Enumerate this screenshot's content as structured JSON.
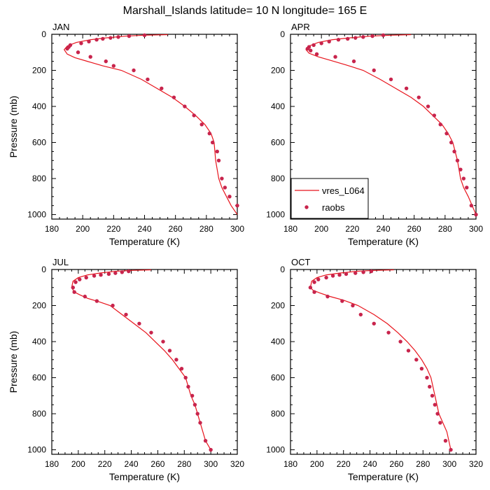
{
  "page_title": "Marshall_Islands  latitude= 10 N longitude= 165 E",
  "colors": {
    "model_line": "#e8141c",
    "obs_marker": "#c8244c",
    "axis": "#000000"
  },
  "chart_data": [
    {
      "type": "line",
      "panel_label": "JAN",
      "xlabel": "Temperature (K)",
      "ylabel": "Pressure (mb)",
      "xlim": [
        180,
        300
      ],
      "ylim": [
        0,
        1025
      ],
      "y_inverted": true,
      "x_ticks": [
        180,
        200,
        220,
        240,
        260,
        280,
        300
      ],
      "y_ticks": [
        0,
        200,
        400,
        600,
        800,
        1000
      ],
      "legend": null,
      "series": [
        {
          "kind": "line",
          "x": [
            255,
            240,
            228,
            215,
            205,
            196,
            190,
            188,
            190,
            195,
            203,
            213,
            225,
            238,
            248,
            258,
            266,
            273,
            279,
            283,
            285,
            286,
            288,
            290,
            293,
            296,
            300
          ],
          "y": [
            2,
            5,
            10,
            20,
            30,
            45,
            65,
            85,
            110,
            130,
            150,
            175,
            200,
            250,
            300,
            350,
            400,
            450,
            500,
            550,
            600,
            700,
            800,
            850,
            900,
            950,
            1000
          ]
        },
        {
          "kind": "points",
          "x": [
            240,
            230,
            223,
            218,
            213,
            209,
            204,
            199,
            192,
            191,
            190,
            197,
            205,
            215,
            220,
            233,
            242,
            251,
            259,
            266,
            272,
            277,
            282,
            284,
            287,
            288,
            290,
            292,
            295,
            300
          ],
          "y": [
            5,
            10,
            15,
            20,
            25,
            30,
            40,
            50,
            60,
            70,
            80,
            100,
            125,
            150,
            175,
            200,
            250,
            300,
            350,
            400,
            450,
            500,
            550,
            600,
            650,
            700,
            800,
            850,
            900,
            950
          ]
        }
      ]
    },
    {
      "type": "line",
      "panel_label": "APR",
      "xlabel": "Temperature (K)",
      "ylabel": "",
      "xlim": [
        180,
        300
      ],
      "ylim": [
        0,
        1025
      ],
      "y_inverted": true,
      "x_ticks": [
        180,
        200,
        220,
        240,
        260,
        280,
        300
      ],
      "y_ticks": [
        0,
        200,
        400,
        600,
        800,
        1000
      ],
      "legend": {
        "placement": "bottom-left",
        "line_label": "vres_L064",
        "points_label": "raobs"
      },
      "series": [
        {
          "kind": "line",
          "x": [
            258,
            245,
            232,
            218,
            207,
            198,
            192,
            190,
            192,
            198,
            206,
            216,
            227,
            238,
            248,
            258,
            266,
            272,
            278,
            282,
            285,
            288,
            290,
            292,
            295,
            300
          ],
          "y": [
            2,
            5,
            10,
            20,
            30,
            45,
            65,
            85,
            105,
            125,
            145,
            170,
            200,
            250,
            300,
            350,
            400,
            450,
            500,
            550,
            600,
            700,
            800,
            850,
            900,
            1000
          ]
        },
        {
          "kind": "points",
          "x": [
            240,
            233,
            227,
            222,
            217,
            211,
            205,
            200,
            195,
            192,
            191,
            193,
            197,
            209,
            221,
            234,
            245,
            255,
            263,
            269,
            273,
            277,
            281,
            284,
            286,
            288,
            290,
            292,
            294,
            297,
            300
          ],
          "y": [
            5,
            10,
            15,
            20,
            25,
            30,
            40,
            50,
            60,
            70,
            80,
            90,
            110,
            125,
            150,
            200,
            250,
            300,
            350,
            400,
            450,
            500,
            550,
            600,
            650,
            700,
            750,
            800,
            850,
            950,
            1000
          ]
        }
      ]
    },
    {
      "type": "line",
      "panel_label": "JUL",
      "xlabel": "Temperature (K)",
      "ylabel": "Pressure (mb)",
      "xlim": [
        180,
        320
      ],
      "ylim": [
        0,
        1025
      ],
      "y_inverted": true,
      "x_ticks": [
        180,
        200,
        220,
        240,
        260,
        280,
        300,
        320
      ],
      "y_ticks": [
        0,
        200,
        400,
        600,
        800,
        1000
      ],
      "legend": null,
      "series": [
        {
          "kind": "line",
          "x": [
            255,
            240,
            228,
            216,
            207,
            200,
            196,
            195,
            197,
            201,
            207,
            216,
            224,
            233,
            242,
            251,
            258,
            265,
            271,
            276,
            281,
            285,
            288,
            292,
            296,
            300
          ],
          "y": [
            2,
            5,
            10,
            20,
            30,
            45,
            65,
            100,
            125,
            140,
            160,
            180,
            200,
            250,
            300,
            350,
            400,
            450,
            500,
            550,
            600,
            700,
            750,
            850,
            950,
            1000
          ]
        },
        {
          "kind": "points",
          "x": [
            238,
            233,
            228,
            223,
            217,
            212,
            206,
            201,
            198,
            196,
            197,
            205,
            214,
            226,
            236,
            246,
            255,
            264,
            269,
            274,
            278,
            281,
            283,
            286,
            288,
            290,
            292,
            296,
            300
          ],
          "y": [
            10,
            15,
            20,
            25,
            30,
            35,
            45,
            55,
            70,
            100,
            125,
            150,
            175,
            200,
            250,
            300,
            350,
            400,
            450,
            500,
            550,
            600,
            650,
            700,
            750,
            800,
            850,
            950,
            1000
          ]
        }
      ]
    },
    {
      "type": "line",
      "panel_label": "OCT",
      "xlabel": "Temperature (K)",
      "ylabel": "",
      "xlim": [
        180,
        320
      ],
      "ylim": [
        0,
        1025
      ],
      "y_inverted": true,
      "x_ticks": [
        180,
        200,
        220,
        240,
        260,
        280,
        300,
        320
      ],
      "y_ticks": [
        0,
        200,
        400,
        600,
        800,
        1000
      ],
      "legend": null,
      "series": [
        {
          "kind": "line",
          "x": [
            258,
            243,
            230,
            217,
            207,
            200,
            196,
            195,
            197,
            202,
            210,
            220,
            231,
            243,
            253,
            261,
            268,
            274,
            279,
            283,
            286,
            289,
            292,
            295,
            298,
            301
          ],
          "y": [
            2,
            5,
            10,
            20,
            30,
            45,
            65,
            100,
            115,
            130,
            150,
            170,
            200,
            250,
            300,
            350,
            400,
            450,
            500,
            550,
            600,
            700,
            800,
            850,
            900,
            1000
          ]
        },
        {
          "kind": "points",
          "x": [
            241,
            235,
            229,
            222,
            217,
            212,
            207,
            201,
            198,
            195,
            198,
            208,
            219,
            227,
            233,
            243,
            254,
            263,
            269,
            275,
            279,
            283,
            285,
            287,
            289,
            291,
            293,
            297,
            301
          ],
          "y": [
            10,
            15,
            20,
            25,
            30,
            35,
            45,
            55,
            70,
            100,
            125,
            150,
            175,
            200,
            250,
            300,
            350,
            400,
            450,
            500,
            550,
            600,
            650,
            700,
            750,
            800,
            850,
            950,
            1000
          ]
        }
      ]
    }
  ]
}
